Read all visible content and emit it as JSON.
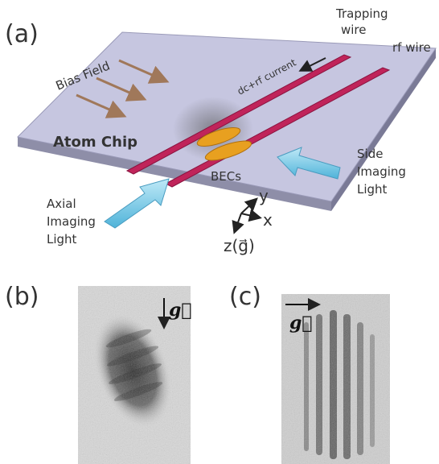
{
  "panel_a": {
    "label": "(a)",
    "trapping_wire": [
      "Trapping",
      "wire"
    ],
    "rf_wire": "rf wire",
    "bias_field": "Bias Field",
    "current": "dc+rf current",
    "atom_chip": "Atom Chip",
    "becs": "BECs",
    "side_light": [
      "Side",
      "Imaging",
      "Light"
    ],
    "axial_light": [
      "Axial",
      "Imaging",
      "Light"
    ],
    "axes": {
      "y": "y",
      "x": "x",
      "z": "z(g⃗)"
    }
  },
  "panel_b": {
    "label": "(b)",
    "gravity": "g⃗"
  },
  "panel_c": {
    "label": "(c)",
    "gravity": "g⃗"
  }
}
